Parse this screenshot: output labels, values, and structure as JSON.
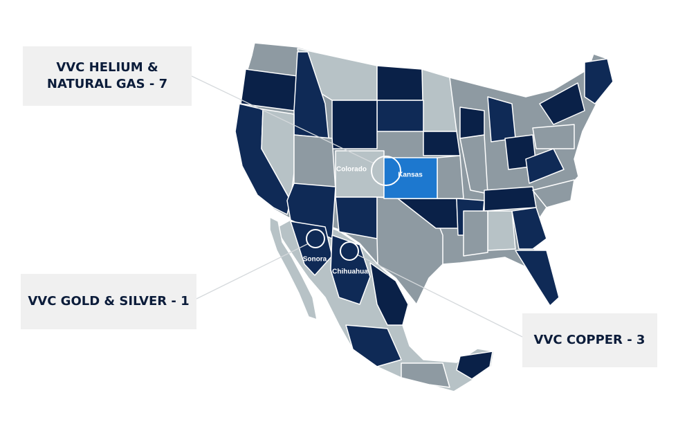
{
  "callouts": [
    {
      "lines": [
        "VVC HELIUM &",
        "NATURAL GAS - 7"
      ]
    },
    {
      "lines": [
        "VVC GOLD & SILVER - 1"
      ]
    },
    {
      "lines": [
        "VVC COPPER - 3"
      ]
    }
  ],
  "map_labels": [
    "Colorado",
    "Kansas",
    "Sonora",
    "Chihuahua"
  ]
}
